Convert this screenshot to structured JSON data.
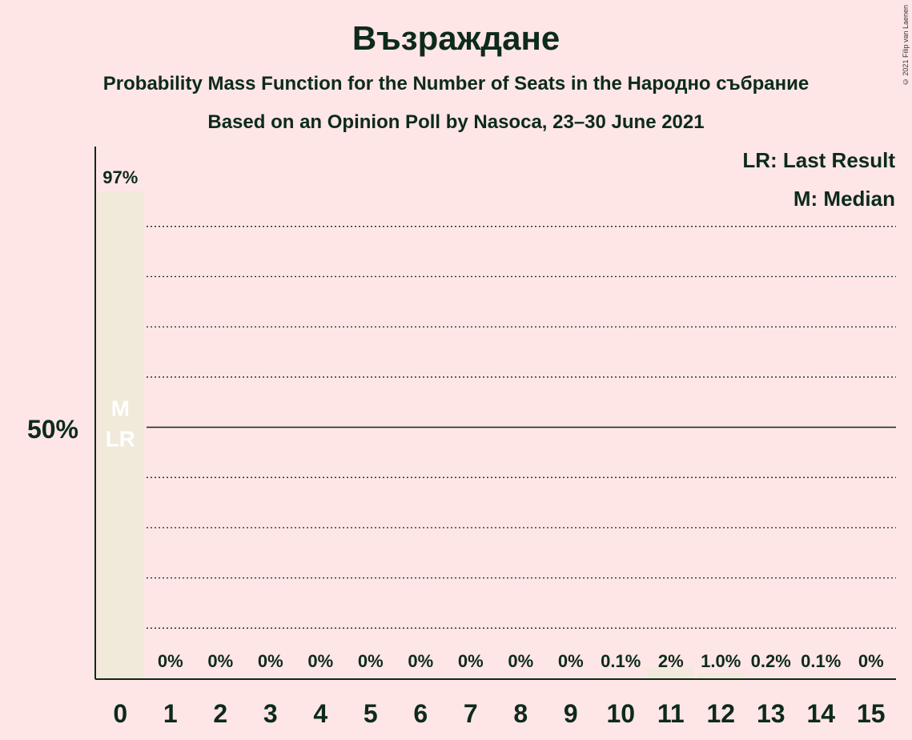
{
  "header": {
    "title": "Възраждане",
    "subtitle1": "Probability Mass Function for the Number of Seats in the Народно събрание",
    "subtitle2": "Based on an Opinion Poll by Nasoca, 23–30 June 2021",
    "copyright": "© 2021 Filip van Laenen"
  },
  "legend": {
    "last_result": "LR: Last Result",
    "median": "M: Median"
  },
  "colors": {
    "background": "#fee6e6",
    "bar": "#f1e9da",
    "text": "#0d2a1a",
    "marker_text": "#ffffff"
  },
  "chart_data": {
    "type": "bar",
    "categories": [
      "0",
      "1",
      "2",
      "3",
      "4",
      "5",
      "6",
      "7",
      "8",
      "9",
      "10",
      "11",
      "12",
      "13",
      "14",
      "15"
    ],
    "values": [
      97,
      0,
      0,
      0,
      0,
      0,
      0,
      0,
      0,
      0,
      0.1,
      2,
      1.0,
      0.2,
      0.1,
      0
    ],
    "data_labels": [
      "97%",
      "0%",
      "0%",
      "0%",
      "0%",
      "0%",
      "0%",
      "0%",
      "0%",
      "0%",
      "0.1%",
      "2%",
      "1.0%",
      "0.2%",
      "0.1%",
      "0%"
    ],
    "ylim": [
      0,
      100
    ],
    "y_tick_label": "50%",
    "y_tick_value": 50,
    "gridlines": [
      10,
      20,
      30,
      40,
      60,
      70,
      80,
      90
    ],
    "median_seat": "0",
    "last_result_seat": "0",
    "median_marker": "M",
    "last_result_marker": "LR",
    "legend_position": "top-right"
  }
}
